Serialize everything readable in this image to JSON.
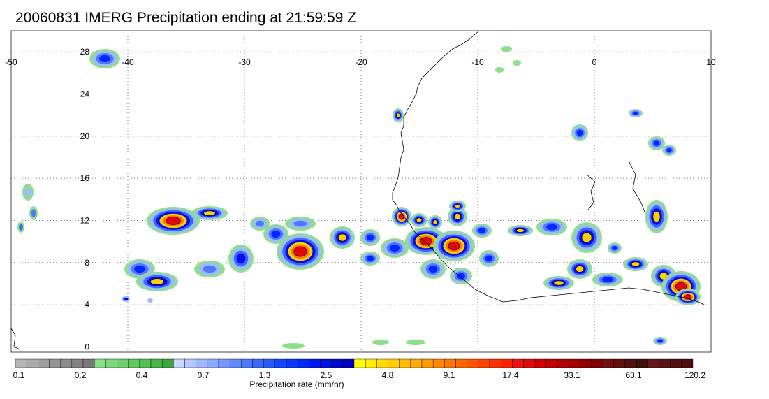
{
  "title": "20060831 IMERG Precipitation ending at 21:59:59 Z",
  "map": {
    "lon_labels": [
      "-50",
      "-40",
      "-30",
      "-20",
      "-10",
      "0",
      "10"
    ],
    "lon_values": [
      -50,
      -40,
      -30,
      -20,
      -10,
      0,
      10
    ],
    "lat_labels": [
      "28",
      "24",
      "20",
      "16",
      "12",
      "8",
      "4",
      "0"
    ],
    "lat_values": [
      28,
      24,
      20,
      16,
      12,
      8,
      4,
      0
    ],
    "lon_range": [
      -50,
      10
    ],
    "lat_range": [
      -0.5,
      30
    ],
    "grid": "dotted"
  },
  "colorbar": {
    "title": "Precipitation rate (mm/hr)",
    "tick_labels": [
      "0.1",
      "0.2",
      "0.4",
      "0.7",
      "1.3",
      "2.5",
      "4.8",
      "9.1",
      "17.4",
      "33.1",
      "63.1",
      "120.2"
    ],
    "colors": [
      "#b4b4b4",
      "#aaaaaa",
      "#a0a0a0",
      "#969696",
      "#8c8c8c",
      "#828282",
      "#787878",
      "#8ce08c",
      "#7dd87d",
      "#6ed06e",
      "#5fc85f",
      "#50c050",
      "#46b446",
      "#3ca83c",
      "#c8d8ff",
      "#b4c8ff",
      "#a0b8ff",
      "#8caaff",
      "#7898ff",
      "#6488ff",
      "#5078ff",
      "#3c68ff",
      "#2858ff",
      "#1448ff",
      "#0a38ff",
      "#0028ff",
      "#0018f0",
      "#0010e0",
      "#0008d0",
      "#0000c0",
      "#ffff00",
      "#ffee00",
      "#ffdd00",
      "#ffcc00",
      "#ffbb00",
      "#ffaa00",
      "#ff9900",
      "#ff8800",
      "#ff7700",
      "#ff6600",
      "#ff5500",
      "#ff4400",
      "#ff3300",
      "#ff2200",
      "#f01010",
      "#e00808",
      "#d00000",
      "#c00000",
      "#b00000",
      "#a00000",
      "#900000",
      "#800000",
      "#701010",
      "#601010",
      "#501010",
      "#401010",
      "#601818",
      "#5a1414",
      "#541010",
      "#4e0c0c"
    ]
  }
}
